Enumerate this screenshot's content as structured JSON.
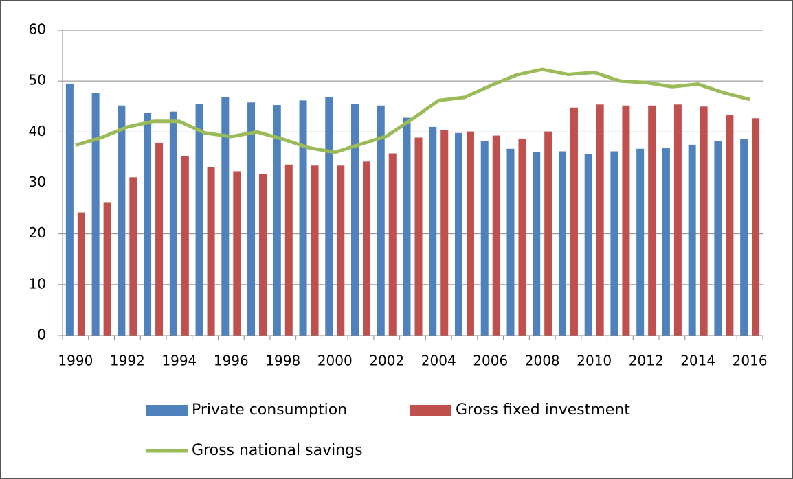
{
  "chart_data": {
    "type": "bar",
    "categories": [
      "1990",
      null,
      "1992",
      null,
      "1994",
      null,
      "1996",
      null,
      "1998",
      null,
      "2000",
      null,
      "2002",
      null,
      "2004",
      null,
      "2006",
      null,
      "2008",
      null,
      "2010",
      null,
      "2012",
      null,
      "2014",
      null,
      "2016"
    ],
    "series": [
      {
        "name": "Private consumption",
        "color": "#4f81bd",
        "type": "bar",
        "values": [
          49.5,
          47.7,
          45.2,
          43.7,
          44,
          45.5,
          46.8,
          45.8,
          45.3,
          46.2,
          46.8,
          45.5,
          45.2,
          42.8,
          41,
          39.8,
          38.2,
          36.7,
          36,
          36.2,
          35.7,
          36.2,
          36.7,
          36.8,
          37.5,
          38.2,
          38.7
        ]
      },
      {
        "name": "Gross fixed investment",
        "color": "#c0504d",
        "type": "bar",
        "values": [
          24.2,
          26.1,
          31.1,
          37.9,
          35.2,
          33.1,
          32.3,
          31.7,
          33.6,
          33.4,
          33.4,
          34.2,
          35.8,
          38.9,
          40.4,
          40.1,
          39.3,
          38.7,
          40.1,
          44.8,
          45.4,
          45.2,
          45.2,
          45.4,
          45,
          43.3,
          42.7
        ]
      },
      {
        "name": "Gross national savings",
        "color": "#9bbb59",
        "type": "line",
        "values": [
          37.4,
          38.9,
          41,
          42.1,
          42.1,
          39.8,
          39.1,
          40,
          38.6,
          36.9,
          36,
          37.6,
          39.2,
          42.6,
          46.2,
          46.8,
          49.1,
          51.2,
          52.3,
          51.3,
          51.7,
          50,
          49.7,
          48.9,
          49.4,
          47.7,
          46.4
        ]
      }
    ],
    "ylim": [
      0,
      60
    ],
    "yticks": [
      0,
      10,
      20,
      30,
      40,
      50,
      60
    ],
    "grid": true
  }
}
